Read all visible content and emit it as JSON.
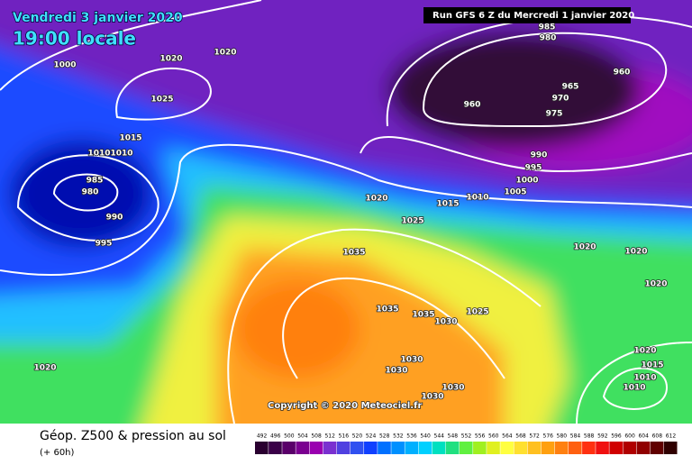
{
  "header": {
    "date": "Vendredi 3 janvier 2020",
    "time": "19:00 locale",
    "run": "Run GFS 6 Z du Mercredi 1 janvier 2020"
  },
  "isobar_labels": [
    1000,
    1020,
    1020,
    1025,
    1015,
    1010,
    1010,
    985,
    980,
    990,
    995,
    1020,
    1035,
    1035,
    1035,
    1030,
    1025,
    1030,
    1030,
    1030,
    1030,
    1020,
    1025,
    1015,
    1010,
    1005,
    1000,
    995,
    990,
    985,
    980,
    960,
    965,
    970,
    960,
    975,
    1020,
    1020,
    1020,
    1020,
    1015,
    1010,
    1010
  ],
  "copyright": "Copyright © 2020 Meteociel.fr",
  "footer": {
    "title": "Géop. Z500 & pression au sol",
    "lead": "(+ 60h)"
  },
  "legend": {
    "labels": [
      492,
      496,
      500,
      504,
      508,
      512,
      516,
      520,
      524,
      528,
      532,
      536,
      540,
      544,
      548,
      552,
      556,
      560,
      564,
      568,
      572,
      576,
      580,
      584,
      588,
      592,
      596,
      600,
      604,
      608,
      612
    ],
    "colors": [
      "#2a0030",
      "#3a0048",
      "#5a006a",
      "#7a0090",
      "#9a00b0",
      "#7a30d0",
      "#5040e0",
      "#3050f0",
      "#1040ff",
      "#0070ff",
      "#0090ff",
      "#00b0ff",
      "#00d0ff",
      "#00e0c0",
      "#20e080",
      "#60f040",
      "#a0f020",
      "#e0f020",
      "#ffff40",
      "#ffe030",
      "#ffc020",
      "#ffa010",
      "#ff8010",
      "#ff6010",
      "#ff3010",
      "#f01010",
      "#d00000",
      "#b00000",
      "#900000",
      "#600000",
      "#300000"
    ]
  }
}
